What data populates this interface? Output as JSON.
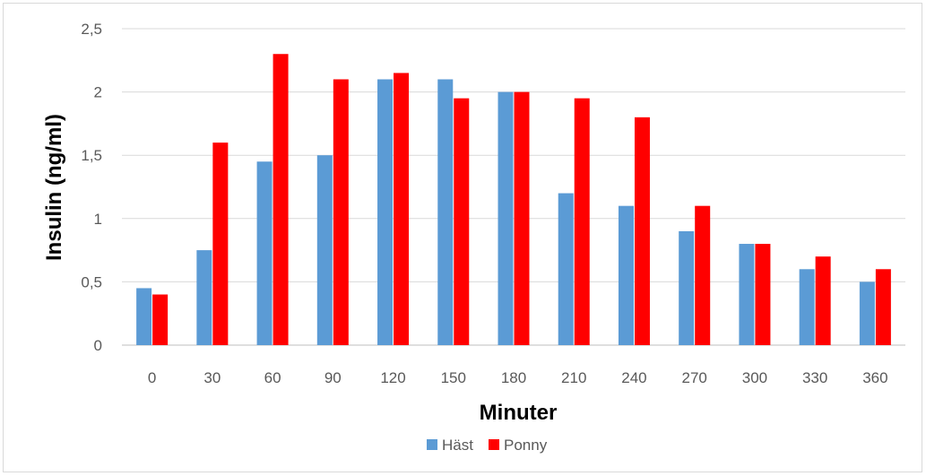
{
  "chart_data": {
    "type": "bar",
    "title": "",
    "xlabel": "Minuter",
    "ylabel": "Insulin (ng/ml)",
    "categories": [
      "0",
      "30",
      "60",
      "90",
      "120",
      "150",
      "180",
      "210",
      "240",
      "270",
      "300",
      "330",
      "360"
    ],
    "series": [
      {
        "name": "Häst",
        "color": "#5b9bd5",
        "values": [
          0.45,
          0.75,
          1.45,
          1.5,
          2.1,
          2.1,
          2.0,
          1.2,
          1.1,
          0.9,
          0.8,
          0.6,
          0.5
        ]
      },
      {
        "name": "Ponny",
        "color": "#ff0000",
        "values": [
          0.4,
          1.6,
          2.3,
          2.1,
          2.15,
          1.95,
          2.0,
          1.95,
          1.8,
          1.1,
          0.8,
          0.7,
          0.6
        ]
      }
    ],
    "ylim": [
      0,
      2.5
    ],
    "yticks": [
      "0",
      "0,5",
      "1",
      "1,5",
      "2",
      "2,5"
    ],
    "grid": true,
    "legend": "bottom"
  }
}
